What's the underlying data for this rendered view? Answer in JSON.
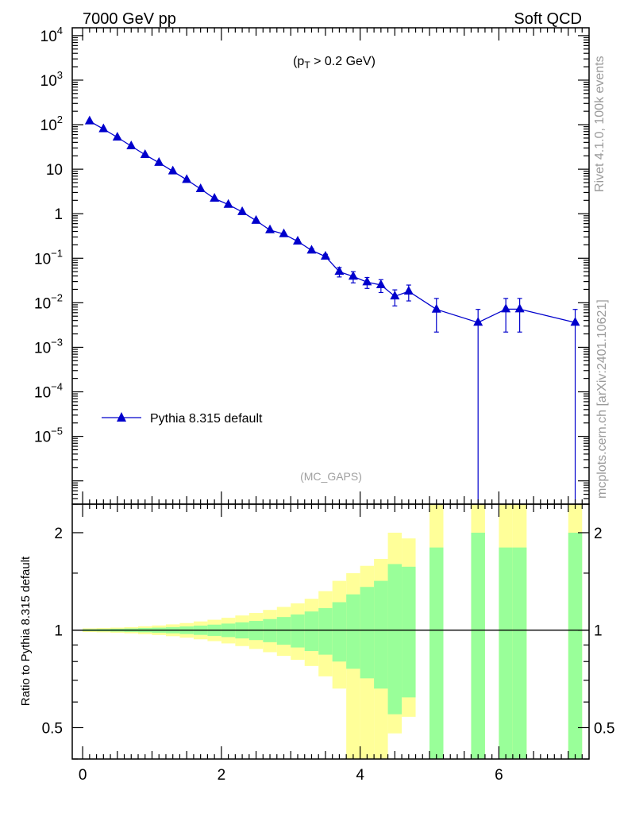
{
  "header": {
    "left": "7000 GeV pp",
    "right": "Soft QCD"
  },
  "side_labels": {
    "rivet": "Rivet 4.1.0,  100k events",
    "mcplots": "mcplots.cern.ch [arXiv:2401.10621]"
  },
  "chart_data": [
    {
      "type": "line",
      "panel": "main",
      "y_scale": "log",
      "xlim": [
        -0.15,
        7.3
      ],
      "ylim": [
        3e-07,
        15000
      ],
      "annotation": {
        "prefix": "(p",
        "sub": "T",
        "suffix": " > 0.2 GeV)"
      },
      "analysis_tag": "(MC_GAPS)",
      "legend": {
        "label": "Pythia 8.315 default",
        "position": "bottom-left"
      },
      "y_ticks": [
        {
          "value": 10000,
          "base": "10",
          "exp": "4"
        },
        {
          "value": 1000,
          "base": "10",
          "exp": "3"
        },
        {
          "value": 100,
          "base": "10",
          "exp": "2"
        },
        {
          "value": 10,
          "base": "10",
          "exp": ""
        },
        {
          "value": 1,
          "base": "1",
          "exp": ""
        },
        {
          "value": 0.1,
          "base": "10",
          "exp": "−1"
        },
        {
          "value": 0.01,
          "base": "10",
          "exp": "−2"
        },
        {
          "value": 0.001,
          "base": "10",
          "exp": "−3"
        },
        {
          "value": 0.0001,
          "base": "10",
          "exp": "−4"
        },
        {
          "value": 1e-05,
          "base": "10",
          "exp": "−5"
        }
      ],
      "series": [
        {
          "name": "Pythia 8.315 default",
          "color": "#0000cc",
          "marker": "triangle-up",
          "x": [
            0.1,
            0.3,
            0.5,
            0.7,
            0.9,
            1.1,
            1.3,
            1.5,
            1.7,
            1.9,
            2.1,
            2.3,
            2.5,
            2.7,
            2.9,
            3.1,
            3.3,
            3.5,
            3.7,
            3.9,
            4.1,
            4.3,
            4.5,
            4.7,
            5.1,
            5.7,
            6.1,
            6.3,
            7.1
          ],
          "y": [
            120,
            80,
            52,
            33,
            21,
            14,
            9,
            5.8,
            3.6,
            2.2,
            1.6,
            1.1,
            0.7,
            0.43,
            0.35,
            0.24,
            0.15,
            0.11,
            0.05,
            0.039,
            0.029,
            0.025,
            0.014,
            0.018,
            0.0071,
            0.0036,
            0.0072,
            0.0072,
            0.0036
          ],
          "y_lo": [
            118,
            79,
            51,
            32.5,
            20.7,
            13.8,
            8.8,
            5.7,
            3.5,
            2.15,
            1.55,
            1.06,
            0.67,
            0.41,
            0.33,
            0.22,
            0.135,
            0.097,
            0.038,
            0.028,
            0.021,
            0.017,
            0.0085,
            0.011,
            0.0022,
            1e-07,
            0.0022,
            0.0022,
            1e-07
          ],
          "y_hi": [
            122,
            81,
            53,
            33.5,
            21.3,
            14.2,
            9.2,
            5.9,
            3.7,
            2.25,
            1.65,
            1.14,
            0.73,
            0.45,
            0.37,
            0.26,
            0.165,
            0.123,
            0.062,
            0.05,
            0.037,
            0.033,
            0.0195,
            0.025,
            0.0125,
            0.0071,
            0.0125,
            0.0125,
            0.0071
          ]
        }
      ]
    },
    {
      "type": "area",
      "panel": "ratio",
      "y_scale": "log",
      "ylabel": "Ratio to Pythia 8.315 default",
      "xlim": [
        -0.15,
        7.3
      ],
      "ylim": [
        0.4,
        2.45
      ],
      "x_ticks": [
        "0",
        "2",
        "4",
        "6"
      ],
      "y_ticks": [
        "0.5",
        "1",
        "2"
      ],
      "reference_line": 1,
      "bands": {
        "bin_edges": [
          0,
          0.2,
          0.4,
          0.6,
          0.8,
          1.0,
          1.2,
          1.4,
          1.6,
          1.8,
          2.0,
          2.2,
          2.4,
          2.6,
          2.8,
          3.0,
          3.2,
          3.4,
          3.6,
          3.8,
          4.0,
          4.2,
          4.4,
          4.6,
          4.8,
          5.0,
          5.2,
          5.4,
          5.6,
          5.8,
          6.0,
          6.2,
          6.4,
          6.6,
          6.8,
          7.0,
          7.2
        ],
        "yellow_hi": [
          1.013,
          1.015,
          1.018,
          1.022,
          1.028,
          1.034,
          1.042,
          1.052,
          1.064,
          1.077,
          1.092,
          1.11,
          1.13,
          1.155,
          1.18,
          1.21,
          1.25,
          1.32,
          1.42,
          1.5,
          1.58,
          1.66,
          2.0,
          1.92,
          null,
          2.5,
          null,
          null,
          2.5,
          null,
          2.5,
          2.5,
          null,
          null,
          null,
          2.5
        ],
        "yellow_lo": [
          0.987,
          0.985,
          0.982,
          0.978,
          0.972,
          0.966,
          0.958,
          0.948,
          0.937,
          0.925,
          0.91,
          0.893,
          0.875,
          0.855,
          0.833,
          0.81,
          0.775,
          0.72,
          0.66,
          0.3,
          0.3,
          0.3,
          0.48,
          0.54,
          null,
          0.3,
          null,
          null,
          0.3,
          null,
          0.3,
          0.3,
          null,
          null,
          null,
          0.3
        ],
        "green_hi": [
          1.007,
          1.008,
          1.01,
          1.012,
          1.015,
          1.018,
          1.022,
          1.027,
          1.033,
          1.04,
          1.048,
          1.057,
          1.068,
          1.082,
          1.098,
          1.118,
          1.142,
          1.17,
          1.22,
          1.29,
          1.36,
          1.42,
          1.6,
          1.57,
          null,
          1.8,
          null,
          null,
          2.0,
          null,
          1.8,
          1.8,
          null,
          null,
          null,
          2.0
        ],
        "green_lo": [
          0.993,
          0.992,
          0.99,
          0.988,
          0.985,
          0.982,
          0.978,
          0.973,
          0.967,
          0.96,
          0.952,
          0.943,
          0.932,
          0.918,
          0.902,
          0.884,
          0.862,
          0.84,
          0.8,
          0.76,
          0.71,
          0.66,
          0.55,
          0.62,
          null,
          0.3,
          null,
          null,
          0.3,
          null,
          0.3,
          0.3,
          null,
          null,
          null,
          0.3
        ],
        "yellow_color": "#ffff99",
        "green_color": "#99ff99"
      }
    }
  ]
}
